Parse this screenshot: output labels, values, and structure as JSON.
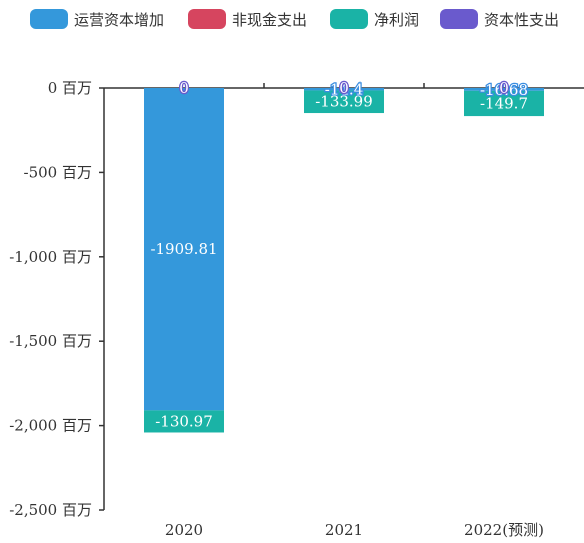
{
  "chart_data": {
    "type": "bar",
    "stacked": true,
    "title": "",
    "xlabel": "",
    "ylabel": "",
    "unit_suffix": " 百万",
    "categories": [
      "2020",
      "2021",
      "2022(预测)"
    ],
    "ylim": [
      -2500,
      0
    ],
    "yticks": [
      0,
      -500,
      -1000,
      -1500,
      -2000,
      -2500
    ],
    "ytick_labels": [
      "0 百万",
      "-500 百万",
      "-1,000 百万",
      "-1,500 百万",
      "-2,000 百万",
      "-2,500 百万"
    ],
    "legend_position": "top",
    "series": [
      {
        "name": "运营资本增加",
        "color": "#3498db",
        "values": [
          -1909.81,
          -14.4,
          -16.68
        ]
      },
      {
        "name": "非现金支出",
        "color": "#d6455f",
        "values": [
          0,
          0,
          0
        ]
      },
      {
        "name": "净利润",
        "color": "#1ab3a6",
        "values": [
          -130.97,
          -133.99,
          -149.7
        ]
      },
      {
        "name": "资本性支出",
        "color": "#6a5acd",
        "values": [
          0,
          0,
          0
        ]
      }
    ],
    "value_labels": [
      [
        "-1909.81",
        "-14.4",
        "-16.68"
      ],
      [
        "",
        "",
        ""
      ],
      [
        "-130.97",
        "-133.99",
        "-149.7"
      ],
      [
        "0",
        "0",
        "0"
      ]
    ]
  }
}
